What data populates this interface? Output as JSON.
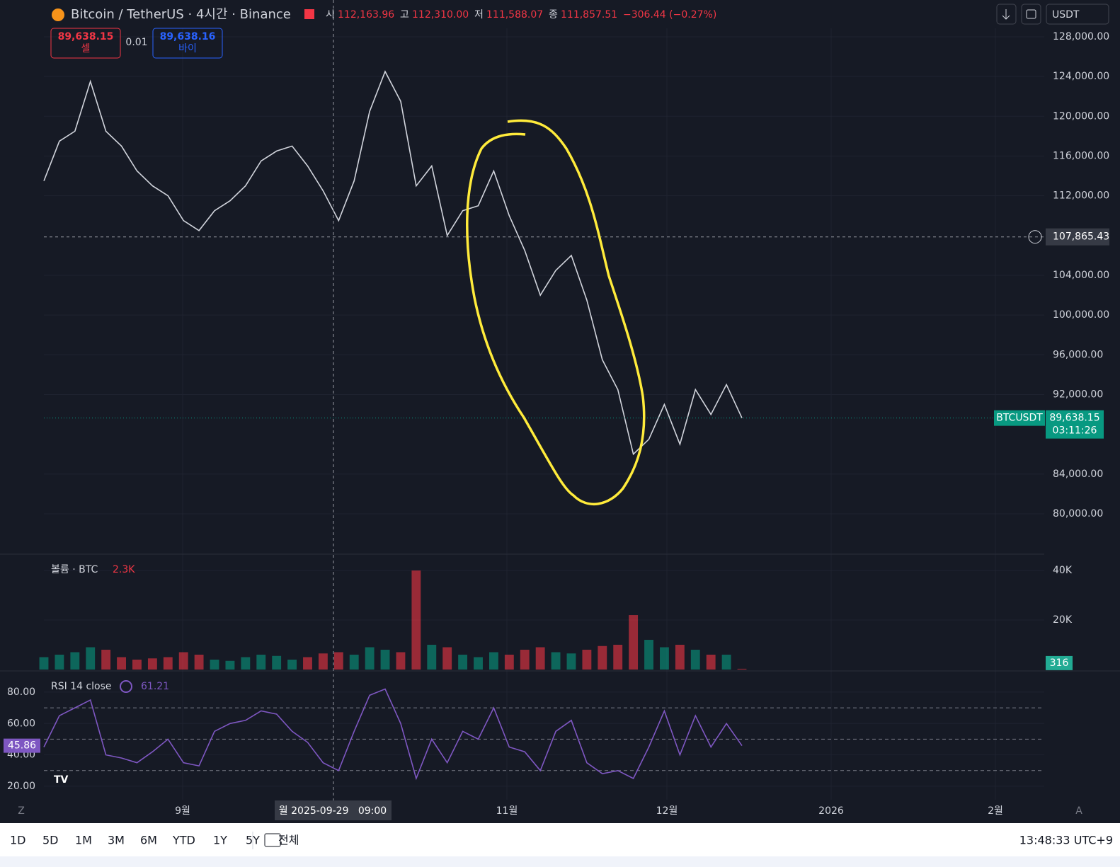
{
  "header": {
    "symbol": "Bitcoin / TetherUS · 4시간 · Binance",
    "ohlc": [
      {
        "label": "시",
        "value": "112,163.96"
      },
      {
        "label": "고",
        "value": "112,310.00"
      },
      {
        "label": "저",
        "value": "111,588.07"
      },
      {
        "label": "종",
        "value": "111,857.51"
      }
    ],
    "change": "−306.44 (−0.27%)",
    "sell": {
      "price": "89,638.15",
      "label": "셀"
    },
    "spread": "0.01",
    "buy": {
      "price": "89,638.16",
      "label": "바이"
    },
    "currency": "USDT"
  },
  "volume_legend": {
    "name": "볼륨 · BTC",
    "value": "2.3K"
  },
  "rsi_legend": {
    "name": "RSI 14 close",
    "value": "61.21"
  },
  "time_labels": [
    "9월",
    "11월",
    "12월",
    "2026",
    "2월"
  ],
  "crosshair_time": "월 2025-09-29   09:00",
  "toolbar": {
    "ranges": [
      "1D",
      "5D",
      "1M",
      "3M",
      "6M",
      "YTD",
      "1Y",
      "5Y",
      "전체"
    ],
    "clock": "13:48:33 UTC+9"
  },
  "chart_data": [
    {
      "type": "line",
      "color": "#d1d4dc",
      "values": [
        113500,
        117500,
        118500,
        123500,
        118500,
        117000,
        114500,
        113000,
        112000,
        109500,
        108500,
        110500,
        111500,
        113000,
        115500,
        116500,
        117000,
        115000,
        112500,
        109500,
        113500,
        120500,
        124500,
        121500,
        113000,
        115000,
        108000,
        110500,
        111000,
        114500,
        110000,
        106500,
        102000,
        104500,
        106000,
        101500,
        95500,
        92500,
        86000,
        87500,
        91000,
        87000,
        92500,
        90000,
        93000,
        89638.15
      ],
      "ylim": [
        75940,
        131700
      ],
      "yticks": [
        {
          "value": 128000,
          "label": "128,000.00"
        },
        {
          "value": 124000,
          "label": "124,000.00"
        },
        {
          "value": 120000,
          "label": "120,000.00"
        },
        {
          "value": 116000,
          "label": "116,000.00"
        },
        {
          "value": 112000,
          "label": "112,000.00"
        },
        {
          "value": 104000,
          "label": "104,000.00"
        },
        {
          "value": 100000,
          "label": "100,000.00"
        },
        {
          "value": 96000,
          "label": "96,000.00"
        },
        {
          "value": 92000,
          "label": "92,000.00"
        },
        {
          "value": 84000,
          "label": "84,000.00"
        },
        {
          "value": 80000,
          "label": "80,000.00"
        }
      ],
      "grid": true,
      "last_price_label": "89,638.15",
      "symbol_tag": "BTCUSDT",
      "countdown": "03:11:26",
      "crosshair": {
        "value": 107865.43,
        "label": "107,865.43"
      }
    },
    {
      "type": "bar",
      "up_color": "#089981",
      "down_color": "#f23645",
      "values": [
        5000,
        6000,
        7000,
        9000,
        8000,
        5000,
        4000,
        4500,
        5000,
        7000,
        6000,
        4000,
        3500,
        5000,
        6000,
        5500,
        4000,
        5000,
        6500,
        7000,
        6000,
        9000,
        8000,
        7000,
        40000,
        10000,
        9000,
        6000,
        5000,
        7000,
        6000,
        8000,
        9000,
        7000,
        6500,
        8000,
        9500,
        10000,
        22000,
        12000,
        9000,
        10000,
        8000,
        6000,
        6000,
        316
      ],
      "ylim": [
        0,
        46600
      ],
      "yticks": [
        {
          "value": 40000,
          "label": "40K"
        },
        {
          "value": 20000,
          "label": "20K"
        }
      ]
    },
    {
      "type": "line",
      "color": "#7e57c2",
      "values": [
        45,
        65,
        70,
        75,
        40,
        38,
        35,
        42,
        50,
        35,
        33,
        55,
        60,
        62,
        68,
        66,
        55,
        48,
        35,
        30,
        55,
        78,
        82,
        60,
        25,
        50,
        35,
        55,
        50,
        70,
        45,
        42,
        30,
        55,
        62,
        35,
        28,
        30,
        25,
        45,
        68,
        40,
        65,
        45,
        60,
        45.86
      ],
      "ylim": [
        11.4,
        93.5
      ],
      "yticks": [
        {
          "value": 80,
          "label": "80.00"
        },
        {
          "value": 60,
          "label": "60.00"
        },
        {
          "value": 40,
          "label": "40.00"
        },
        {
          "value": 20,
          "label": "20.00"
        }
      ],
      "levels": [
        70,
        50,
        30
      ]
    }
  ]
}
